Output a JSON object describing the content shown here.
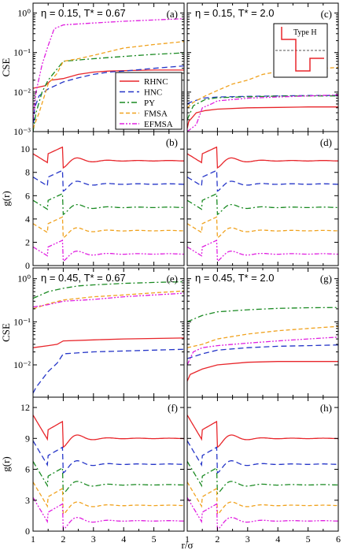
{
  "colors": {
    "RHNC": "#e8262b",
    "HNC": "#2636c8",
    "PY": "#1a8a22",
    "FMSA": "#f0a21e",
    "EFMSA": "#e020e0"
  },
  "chart_data": {
    "type": "line",
    "x_axis": {
      "label": "r/σ",
      "lim": [
        1,
        6
      ],
      "ticks_left": [
        "1",
        "2",
        "3",
        "4",
        "5"
      ],
      "ticks_right": [
        "1",
        "2",
        "3",
        "4",
        "5",
        "6"
      ]
    },
    "legend": [
      "RHNC",
      "HNC",
      "PY",
      "FMSA",
      "EFMSA"
    ],
    "inset_label": "Type H",
    "panels": [
      {
        "id": "a",
        "tag": "(a)",
        "title": "η = 0.15, T* = 0.67",
        "kind": "cse",
        "ylabel": "CSE",
        "yticks": [
          "10⁻³",
          "10⁻²",
          "10⁻¹",
          "10⁰"
        ],
        "series": {
          "RHNC": [
            [
              1,
              0.0125
            ],
            [
              1.4,
              0.0145
            ],
            [
              1.6,
              0.02
            ],
            [
              2.0,
              0.022
            ],
            [
              2.5,
              0.028
            ],
            [
              3,
              0.032
            ],
            [
              3.5,
              0.034
            ],
            [
              4,
              0.035
            ],
            [
              5,
              0.036
            ],
            [
              6,
              0.036
            ]
          ],
          "HNC": [
            [
              1,
              0.001
            ],
            [
              1.05,
              0.004
            ],
            [
              1.2,
              0.008
            ],
            [
              1.5,
              0.012
            ],
            [
              2,
              0.018
            ],
            [
              2.5,
              0.023
            ],
            [
              3,
              0.028
            ],
            [
              3.5,
              0.032
            ],
            [
              4,
              0.034
            ],
            [
              5,
              0.04
            ],
            [
              6,
              0.046
            ]
          ],
          "PY": [
            [
              1,
              0.001
            ],
            [
              1.1,
              0.003
            ],
            [
              1.3,
              0.01
            ],
            [
              1.5,
              0.02
            ],
            [
              2,
              0.06
            ],
            [
              2.5,
              0.065
            ],
            [
              3,
              0.07
            ],
            [
              4,
              0.08
            ],
            [
              5,
              0.09
            ],
            [
              6,
              0.098
            ]
          ],
          "FMSA": [
            [
              1,
              0.0012
            ],
            [
              1.2,
              0.003
            ],
            [
              1.5,
              0.016
            ],
            [
              1.8,
              0.03
            ],
            [
              2,
              0.06
            ],
            [
              2.5,
              0.07
            ],
            [
              3,
              0.085
            ],
            [
              3.5,
              0.105
            ],
            [
              4,
              0.13
            ],
            [
              5,
              0.16
            ],
            [
              6,
              0.19
            ]
          ],
          "EFMSA": [
            [
              1,
              0.002
            ],
            [
              1.1,
              0.01
            ],
            [
              1.3,
              0.05
            ],
            [
              1.5,
              0.15
            ],
            [
              1.7,
              0.4
            ],
            [
              2,
              0.5
            ],
            [
              3,
              0.56
            ],
            [
              4,
              0.62
            ],
            [
              5,
              0.67
            ],
            [
              6,
              0.72
            ]
          ]
        }
      },
      {
        "id": "c",
        "tag": "(c)",
        "title": "η = 0.15, T* = 2.0",
        "kind": "cse",
        "yticks": [],
        "series": {
          "RHNC": [
            [
              1,
              0.0012
            ],
            [
              1.05,
              0.0018
            ],
            [
              1.3,
              0.003
            ],
            [
              1.6,
              0.0034
            ],
            [
              2,
              0.0037
            ],
            [
              3,
              0.004
            ],
            [
              4,
              0.0041
            ],
            [
              5,
              0.0042
            ],
            [
              6,
              0.0042
            ]
          ],
          "HNC": [
            [
              1,
              0.005
            ],
            [
              1.1,
              0.0055
            ],
            [
              1.5,
              0.007
            ],
            [
              2,
              0.0075
            ],
            [
              3,
              0.0078
            ],
            [
              4,
              0.008
            ],
            [
              5,
              0.0082
            ],
            [
              6,
              0.0082
            ]
          ],
          "PY": [
            [
              1,
              0.002
            ],
            [
              1.2,
              0.0045
            ],
            [
              1.6,
              0.0065
            ],
            [
              2,
              0.0072
            ],
            [
              3,
              0.0076
            ],
            [
              4,
              0.0079
            ],
            [
              5,
              0.008
            ],
            [
              6,
              0.008
            ]
          ],
          "FMSA": [
            [
              1,
              0.004
            ],
            [
              1.2,
              0.0055
            ],
            [
              1.6,
              0.008
            ],
            [
              2,
              0.011
            ],
            [
              2.5,
              0.016
            ],
            [
              3,
              0.02
            ],
            [
              3.5,
              0.028
            ],
            [
              4,
              0.033
            ],
            [
              5,
              0.038
            ],
            [
              6,
              0.042
            ]
          ],
          "EFMSA": [
            [
              1,
              0.001
            ],
            [
              1.3,
              0.0015
            ],
            [
              1.5,
              0.004
            ],
            [
              1.8,
              0.005
            ],
            [
              2,
              0.006
            ],
            [
              3,
              0.007
            ],
            [
              4,
              0.0075
            ],
            [
              5,
              0.008
            ],
            [
              6,
              0.0085
            ]
          ]
        }
      },
      {
        "id": "b",
        "tag": "(b)",
        "kind": "gr",
        "ylabel": "g(r)",
        "yticks": [
          "0",
          "2",
          "4",
          "6",
          "8",
          "10"
        ],
        "offsets": [
          8,
          6,
          4,
          2,
          0
        ]
      },
      {
        "id": "d",
        "tag": "(d)",
        "kind": "gr",
        "yticks": [],
        "offsets": [
          8,
          6,
          4,
          2,
          0
        ]
      },
      {
        "id": "e",
        "tag": "(e)",
        "title": "η = 0.45, T* = 0.67",
        "kind": "cse",
        "ylabel": "CSE",
        "yticks": [
          "10⁻²",
          "10⁻¹",
          "10⁰"
        ],
        "series": {
          "RHNC": [
            [
              1,
              0.025
            ],
            [
              1.5,
              0.028
            ],
            [
              1.8,
              0.03
            ],
            [
              2,
              0.036
            ],
            [
              3,
              0.038
            ],
            [
              4,
              0.04
            ],
            [
              5,
              0.041
            ],
            [
              6,
              0.042
            ]
          ],
          "HNC": [
            [
              1,
              0.0022
            ],
            [
              1.1,
              0.003
            ],
            [
              1.5,
              0.007
            ],
            [
              1.8,
              0.011
            ],
            [
              2,
              0.018
            ],
            [
              3,
              0.02
            ],
            [
              4,
              0.021
            ],
            [
              5,
              0.022
            ],
            [
              6,
              0.023
            ]
          ],
          "PY": [
            [
              1,
              0.35
            ],
            [
              1.5,
              0.5
            ],
            [
              2,
              0.6
            ],
            [
              2.5,
              0.68
            ],
            [
              3,
              0.72
            ],
            [
              4,
              0.78
            ],
            [
              5,
              0.82
            ],
            [
              6,
              0.85
            ]
          ],
          "FMSA": [
            [
              1,
              0.2
            ],
            [
              1.5,
              0.26
            ],
            [
              2,
              0.32
            ],
            [
              2.5,
              0.35
            ],
            [
              3,
              0.38
            ],
            [
              4,
              0.42
            ],
            [
              5,
              0.47
            ],
            [
              6,
              0.52
            ]
          ],
          "EFMSA": [
            [
              1,
              0.22
            ],
            [
              1.5,
              0.25
            ],
            [
              2,
              0.3
            ],
            [
              3,
              0.33
            ],
            [
              4,
              0.38
            ],
            [
              5,
              0.42
            ],
            [
              6,
              0.46
            ]
          ]
        }
      },
      {
        "id": "g",
        "tag": "(g)",
        "title": "η = 0.45, T* = 2.0",
        "kind": "cse",
        "yticks": [],
        "series": {
          "RHNC": [
            [
              1,
              0.0042
            ],
            [
              1.1,
              0.006
            ],
            [
              1.5,
              0.008
            ],
            [
              2,
              0.01
            ],
            [
              3,
              0.0115
            ],
            [
              4,
              0.012
            ],
            [
              5,
              0.012
            ],
            [
              6,
              0.012
            ]
          ],
          "HNC": [
            [
              1,
              0.014
            ],
            [
              1.5,
              0.018
            ],
            [
              2,
              0.022
            ],
            [
              3,
              0.025
            ],
            [
              4,
              0.027
            ],
            [
              5,
              0.028
            ],
            [
              6,
              0.029
            ]
          ],
          "PY": [
            [
              1,
              0.1
            ],
            [
              1.5,
              0.14
            ],
            [
              2,
              0.17
            ],
            [
              3,
              0.19
            ],
            [
              4,
              0.205
            ],
            [
              5,
              0.212
            ],
            [
              6,
              0.215
            ]
          ],
          "FMSA": [
            [
              1,
              0.025
            ],
            [
              1.5,
              0.03
            ],
            [
              2,
              0.04
            ],
            [
              3,
              0.052
            ],
            [
              4,
              0.062
            ],
            [
              5,
              0.07
            ],
            [
              6,
              0.078
            ]
          ],
          "EFMSA": [
            [
              1,
              0.01
            ],
            [
              1.2,
              0.02
            ],
            [
              1.5,
              0.025
            ],
            [
              2,
              0.028
            ],
            [
              3,
              0.032
            ],
            [
              4,
              0.036
            ],
            [
              5,
              0.04
            ],
            [
              6,
              0.044
            ]
          ]
        }
      },
      {
        "id": "f",
        "tag": "(f)",
        "kind": "gr",
        "ylabel": "g(r)",
        "yticks": [
          "0",
          "3",
          "6",
          "9",
          "12"
        ],
        "offsets": [
          8,
          5.5,
          3.5,
          1.5,
          0
        ]
      },
      {
        "id": "h",
        "tag": "(h)",
        "kind": "gr",
        "yticks": [],
        "offsets": [
          8,
          5.5,
          3.5,
          1.5,
          0
        ]
      }
    ]
  }
}
